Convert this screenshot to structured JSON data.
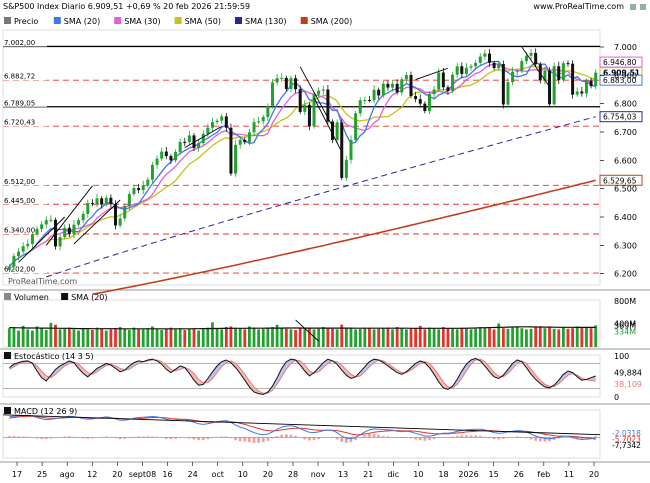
{
  "header": {
    "title": "S&P500 Index Diario 6.909,51 +0,69 % 20 feb 2026 21:59:59",
    "site": "www.ProRealTime.com",
    "icons": [
      "close-icon",
      "maximize-icon"
    ]
  },
  "watermark": "ProRealTime.com",
  "colors": {
    "up": "#22a12f",
    "down": "#111111",
    "sma20": "#3f78e8",
    "sma30": "#e25de0",
    "sma50": "#c9c11a",
    "sma130": "#24289c",
    "sma200": "#c43e1c",
    "grid": "#e4332b",
    "volume_up": "#22a12f",
    "volume_down": "#e4332b",
    "stoch_k": "#111111",
    "stoch_d": "#ea7b7b",
    "stoch_fill": "#b7c4ea",
    "macd": "#3f78e8",
    "macd_signal": "#e4332b",
    "macd_hist": "#f0a3a3"
  },
  "chart_data": [
    {
      "type": "candlestick",
      "title": "S&P500 Index Diario",
      "legend": [
        {
          "name": "Precio",
          "color": "#777777",
          "icon": "candle-icon"
        },
        {
          "name": "SMA (20)",
          "color": "#3f78e8"
        },
        {
          "name": "SMA (30)",
          "color": "#e25de0"
        },
        {
          "name": "SMA (50)",
          "color": "#c9c11a"
        },
        {
          "name": "SMA (130)",
          "color": "#24289c"
        },
        {
          "name": "SMA (200)",
          "color": "#c43e1c"
        }
      ],
      "ylim": [
        6160,
        7060
      ],
      "y_ticks": [
        6200,
        6300,
        6400,
        6500,
        6600,
        6700,
        6800,
        6900,
        7000
      ],
      "y_tick_labels": [
        "6.200",
        "6.300",
        "6.400",
        "6.500",
        "6.600",
        "6.700",
        "6.800",
        "6.900",
        "7.000"
      ],
      "horizontal_levels": [
        {
          "value": 7002.0,
          "label": "7.002,00",
          "style": "solid-black"
        },
        {
          "value": 6882.72,
          "label": "6.882,72",
          "style": "dashed-red"
        },
        {
          "value": 6789.05,
          "label": "6.789,05",
          "style": "solid-black"
        },
        {
          "value": 6720.43,
          "label": "6.720,43",
          "style": "dashed-red"
        },
        {
          "value": 6512.0,
          "label": "6.512,00",
          "style": "dashed-red"
        },
        {
          "value": 6445.0,
          "label": "6.445,00",
          "style": "dashed-red"
        },
        {
          "value": 6340.0,
          "label": "6.340,00",
          "style": "dashed-red"
        },
        {
          "value": 6202.0,
          "label": "6.202,00",
          "style": "dashed-red"
        }
      ],
      "value_tags": [
        {
          "value": 6946.8,
          "label": "6.946,80",
          "color": "#e25de0"
        },
        {
          "value": 6909.51,
          "label": "6.909,51",
          "color": "#c9c11a"
        },
        {
          "value": 6883.0,
          "label": "6.883,00",
          "color": "#3f78e8"
        },
        {
          "value": 6754.03,
          "label": "6.754,03",
          "color": "#24289c"
        },
        {
          "value": 6529.65,
          "label": "6.529,65",
          "color": "#c43e1c"
        }
      ],
      "candles_close": [
        6225,
        6262,
        6278,
        6297,
        6305,
        6339,
        6358,
        6374,
        6389,
        6390,
        6296,
        6329,
        6362,
        6340,
        6373,
        6389,
        6411,
        6449,
        6446,
        6466,
        6444,
        6468,
        6445,
        6370,
        6395,
        6439,
        6481,
        6502,
        6495,
        6512,
        6532,
        6584,
        6606,
        6631,
        6615,
        6600,
        6629,
        6665,
        6664,
        6688,
        6644,
        6661,
        6694,
        6715,
        6735,
        6740,
        6755,
        6715,
        6553,
        6655,
        6672,
        6664,
        6699,
        6735,
        6738,
        6753,
        6791,
        6875,
        6890,
        6891,
        6852,
        6890,
        6851,
        6771,
        6796,
        6720,
        6832,
        6846,
        6850,
        6737,
        6672,
        6734,
        6538,
        6602,
        6672,
        6766,
        6812,
        6813,
        6812,
        6849,
        6829,
        6870,
        6857,
        6870,
        6840,
        6886,
        6901,
        6827,
        6816,
        6800,
        6774,
        6834,
        6850,
        6910,
        6858,
        6845,
        6902,
        6932,
        6905,
        6927,
        6932,
        6944,
        6966,
        6977,
        6944,
        6926,
        6940,
        6797,
        6876,
        6913,
        6916,
        6950,
        6969,
        6979,
        6939,
        6882,
        6917,
        6798,
        6932,
        6883,
        6943,
        6941,
        6832,
        6843,
        6836,
        6881,
        6862,
        6909.51
      ],
      "x_tick_labels": [
        "17",
        "25",
        "ago",
        "12",
        "20",
        "sept08",
        "16",
        "24",
        "oct",
        "10",
        "20",
        "28",
        "nov",
        "13",
        "21",
        "dic",
        "10",
        "18",
        "2026",
        "15",
        "26",
        "feb",
        "11",
        "20"
      ],
      "sma_20_last": 6883.0,
      "sma_30_last": 6946.8,
      "sma_50_last": 6909.51,
      "sma_130_last": 6754.03,
      "sma_200_last": 6529.65
    },
    {
      "type": "bar",
      "title": "Volumen",
      "legend": [
        {
          "name": "Volumen",
          "color": "#888888"
        },
        {
          "name": "SMA (20)",
          "color": "#111111"
        }
      ],
      "ylim": [
        0,
        800
      ],
      "y_tick_labels": [
        "800M",
        "400M"
      ],
      "y_unit": "M",
      "last_value_label": "369M",
      "sma_20_last_label": "334M",
      "values": [
        320,
        330,
        280,
        360,
        300,
        280,
        350,
        330,
        290,
        410,
        380,
        300,
        310,
        330,
        300,
        280,
        320,
        300,
        290,
        330,
        310,
        280,
        300,
        320,
        340,
        310,
        290,
        330,
        300,
        300,
        320,
        350,
        300,
        290,
        310,
        330,
        300,
        320,
        290,
        300,
        310,
        280,
        300,
        330,
        420,
        320,
        300,
        340,
        350,
        330,
        310,
        300,
        350,
        330,
        300,
        310,
        320,
        340,
        380,
        330,
        310,
        300,
        290,
        320,
        310,
        330,
        300,
        310,
        340,
        320,
        310,
        300,
        380,
        330,
        320,
        300,
        310,
        330,
        320,
        300,
        310,
        320,
        330,
        300,
        340,
        320,
        300,
        310,
        320,
        360,
        300,
        330,
        310,
        300,
        340,
        320,
        310,
        300,
        330,
        320,
        300,
        310,
        340,
        330,
        320,
        300,
        400,
        320,
        310,
        330,
        340,
        320,
        300,
        310,
        330,
        350,
        320,
        340,
        310,
        300,
        330,
        310,
        320,
        350,
        330,
        340,
        320,
        369
      ],
      "sma_20": [
        330,
        328,
        326,
        325,
        324,
        324,
        323,
        322,
        322,
        320,
        320,
        318,
        318,
        316,
        315,
        314,
        314,
        313,
        312,
        312,
        311,
        311,
        311,
        311,
        310,
        310,
        310,
        310,
        310,
        310,
        310,
        310,
        310,
        310,
        310,
        310,
        310,
        310,
        310,
        310,
        311,
        312,
        313,
        314,
        315,
        315,
        316,
        317,
        318,
        318,
        318,
        319,
        320,
        320,
        320,
        320,
        321,
        321,
        322,
        322,
        323,
        323,
        323,
        323,
        322,
        322,
        322,
        322,
        322,
        322,
        322,
        321,
        321,
        321,
        321,
        320,
        320,
        320,
        320,
        320,
        320,
        320,
        320,
        320,
        320,
        320,
        320,
        319,
        319,
        319,
        318,
        318,
        318,
        318,
        318,
        318,
        318,
        318,
        318,
        320,
        322,
        324,
        326,
        328,
        330,
        332,
        334,
        336,
        338,
        340,
        342,
        344,
        343,
        342,
        341,
        340,
        339,
        338,
        337,
        336,
        336,
        335,
        335,
        334,
        334,
        334,
        334,
        334
      ]
    },
    {
      "type": "line",
      "title": "Estocástico",
      "legend": [
        {
          "name": "Estocástico (14 3 5)",
          "color": "#111111"
        }
      ],
      "ylim": [
        0,
        100
      ],
      "y_ticks": [
        0,
        100
      ],
      "y_tick_labels": [
        "0",
        "100"
      ],
      "reference_levels": [
        20,
        80
      ],
      "series": [
        {
          "name": "%K",
          "last_label": "49,884",
          "values": [
            70,
            78,
            82,
            85,
            86,
            80,
            62,
            46,
            38,
            52,
            66,
            74,
            80,
            86,
            82,
            68,
            56,
            48,
            58,
            68,
            74,
            80,
            76,
            68,
            60,
            64,
            74,
            82,
            86,
            84,
            88,
            90,
            86,
            78,
            66,
            58,
            66,
            74,
            70,
            56,
            40,
            28,
            30,
            44,
            60,
            74,
            84,
            88,
            82,
            70,
            56,
            40,
            24,
            12,
            8,
            6,
            12,
            26,
            46,
            68,
            84,
            90,
            88,
            76,
            62,
            50,
            58,
            70,
            82,
            90,
            86,
            78,
            64,
            52,
            44,
            48,
            60,
            72,
            84,
            90,
            88,
            82,
            74,
            66,
            58,
            54,
            60,
            70,
            80,
            86,
            82,
            70,
            54,
            36,
            22,
            18,
            26,
            42,
            62,
            78,
            88,
            92,
            86,
            74,
            60,
            48,
            44,
            52,
            66,
            80,
            88,
            84,
            70,
            54,
            42,
            32,
            24,
            22,
            28,
            40,
            54,
            62,
            58,
            48,
            40,
            42,
            46,
            49.884
          ]
        },
        {
          "name": "%D",
          "last_label": "38,109",
          "values": [
            66,
            72,
            78,
            82,
            84,
            82,
            74,
            62,
            50,
            46,
            54,
            64,
            74,
            80,
            83,
            78,
            68,
            58,
            54,
            60,
            68,
            75,
            78,
            74,
            68,
            64,
            66,
            74,
            80,
            84,
            86,
            88,
            88,
            84,
            76,
            66,
            62,
            66,
            70,
            66,
            56,
            42,
            34,
            34,
            44,
            58,
            72,
            82,
            86,
            80,
            68,
            54,
            38,
            24,
            14,
            9,
            9,
            16,
            30,
            48,
            66,
            80,
            88,
            86,
            76,
            62,
            56,
            60,
            70,
            80,
            86,
            84,
            76,
            64,
            54,
            48,
            50,
            60,
            72,
            82,
            88,
            86,
            80,
            72,
            64,
            58,
            58,
            64,
            72,
            80,
            84,
            80,
            68,
            52,
            36,
            24,
            22,
            30,
            44,
            62,
            78,
            88,
            90,
            84,
            72,
            58,
            50,
            48,
            56,
            68,
            80,
            86,
            80,
            66,
            52,
            40,
            30,
            26,
            25,
            32,
            42,
            52,
            56,
            52,
            45,
            41,
            39,
            38.109
          ]
        }
      ]
    },
    {
      "type": "line",
      "title": "MACD",
      "legend": [
        {
          "name": "MACD (12 26 9)",
          "color": "#111111"
        }
      ],
      "ylim": [
        -60,
        80
      ],
      "last_value_labels": [
        "-2,0318",
        "-5,7023",
        "-7,7342"
      ],
      "series": [
        {
          "name": "MACD",
          "values": [
            60,
            62,
            63,
            64,
            64,
            63,
            58,
            54,
            52,
            53,
            55,
            57,
            60,
            62,
            61,
            58,
            55,
            53,
            54,
            56,
            58,
            60,
            58,
            54,
            50,
            50,
            53,
            56,
            58,
            59,
            60,
            61,
            60,
            57,
            53,
            50,
            50,
            52,
            52,
            49,
            44,
            40,
            38,
            40,
            43,
            46,
            48,
            49,
            44,
            36,
            30,
            26,
            20,
            14,
            10,
            8,
            10,
            16,
            24,
            30,
            33,
            34,
            32,
            26,
            20,
            15,
            14,
            16,
            20,
            22,
            20,
            14,
            4,
            -2,
            -4,
            0,
            8,
            16,
            22,
            25,
            24,
            23,
            22,
            21,
            18,
            17,
            18,
            16,
            12,
            8,
            4,
            4,
            6,
            10,
            12,
            12,
            14,
            18,
            20,
            22,
            23,
            24,
            24,
            22,
            18,
            14,
            12,
            13,
            16,
            18,
            20,
            19,
            16,
            10,
            4,
            0,
            -3,
            -4,
            -2,
            1,
            4,
            4,
            0,
            -4,
            -6,
            -5,
            -4,
            -2.0318
          ]
        },
        {
          "name": "Signal",
          "values": [
            56,
            58,
            60,
            61,
            62,
            62,
            61,
            59,
            57,
            56,
            56,
            56,
            57,
            58,
            59,
            59,
            58,
            57,
            56,
            56,
            56,
            57,
            57,
            56,
            55,
            54,
            54,
            54,
            55,
            56,
            57,
            58,
            58,
            58,
            57,
            55,
            54,
            53,
            53,
            52,
            50,
            48,
            46,
            45,
            44,
            44,
            45,
            46,
            46,
            44,
            41,
            38,
            34,
            30,
            26,
            22,
            20,
            19,
            20,
            22,
            24,
            26,
            27,
            27,
            26,
            24,
            22,
            21,
            21,
            21,
            21,
            20,
            17,
            14,
            10,
            8,
            8,
            10,
            12,
            15,
            17,
            18,
            19,
            20,
            20,
            19,
            19,
            19,
            18,
            16,
            14,
            12,
            11,
            11,
            11,
            11,
            12,
            13,
            14,
            16,
            17,
            18,
            19,
            20,
            20,
            19,
            18,
            17,
            17,
            17,
            17,
            18,
            18,
            16,
            14,
            12,
            9,
            7,
            5,
            4,
            4,
            4,
            3,
            2,
            0,
            -1,
            -2,
            -5.7023
          ]
        }
      ]
    }
  ]
}
